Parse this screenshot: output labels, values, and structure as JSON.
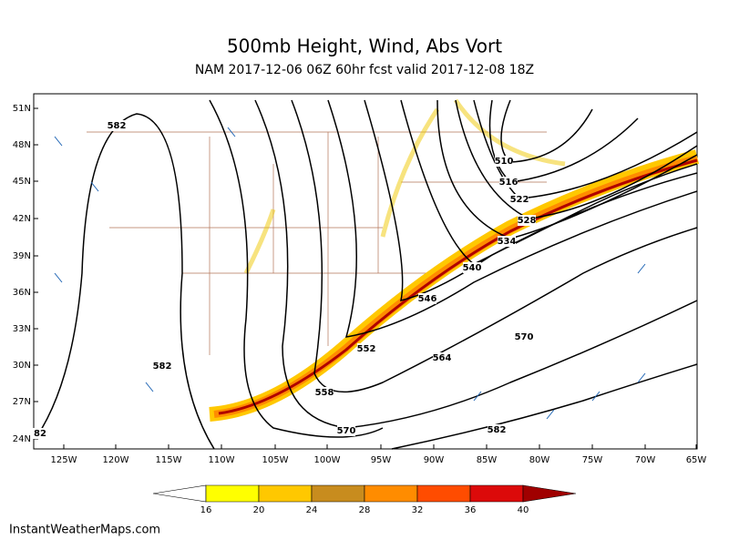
{
  "header": {
    "title": "500mb Height, Wind, Abs Vort",
    "subtitle": "NAM 2017-12-06 06Z 60hr fcst valid 2017-12-08 18Z"
  },
  "axes": {
    "lat_labels": [
      "51N",
      "48N",
      "45N",
      "42N",
      "39N",
      "36N",
      "33N",
      "30N",
      "27N",
      "24N"
    ],
    "lon_labels": [
      "125W",
      "120W",
      "115W",
      "110W",
      "105W",
      "100W",
      "95W",
      "90W",
      "85W",
      "80W",
      "75W",
      "70W",
      "65W"
    ]
  },
  "contour_labels": [
    "582",
    "510",
    "516",
    "522",
    "528",
    "534",
    "540",
    "546",
    "552",
    "558",
    "564",
    "570",
    "570",
    "582",
    "582",
    "82"
  ],
  "colorbar": {
    "labels": [
      "16",
      "20",
      "24",
      "28",
      "32",
      "36",
      "40"
    ],
    "colors": [
      "#ffffff",
      "#ffff00",
      "#ffc800",
      "#c88c1e",
      "#ff8c00",
      "#ff4c00",
      "#dc0a0a",
      "#a00000"
    ]
  },
  "footer": "InstantWeatherMaps.com"
}
